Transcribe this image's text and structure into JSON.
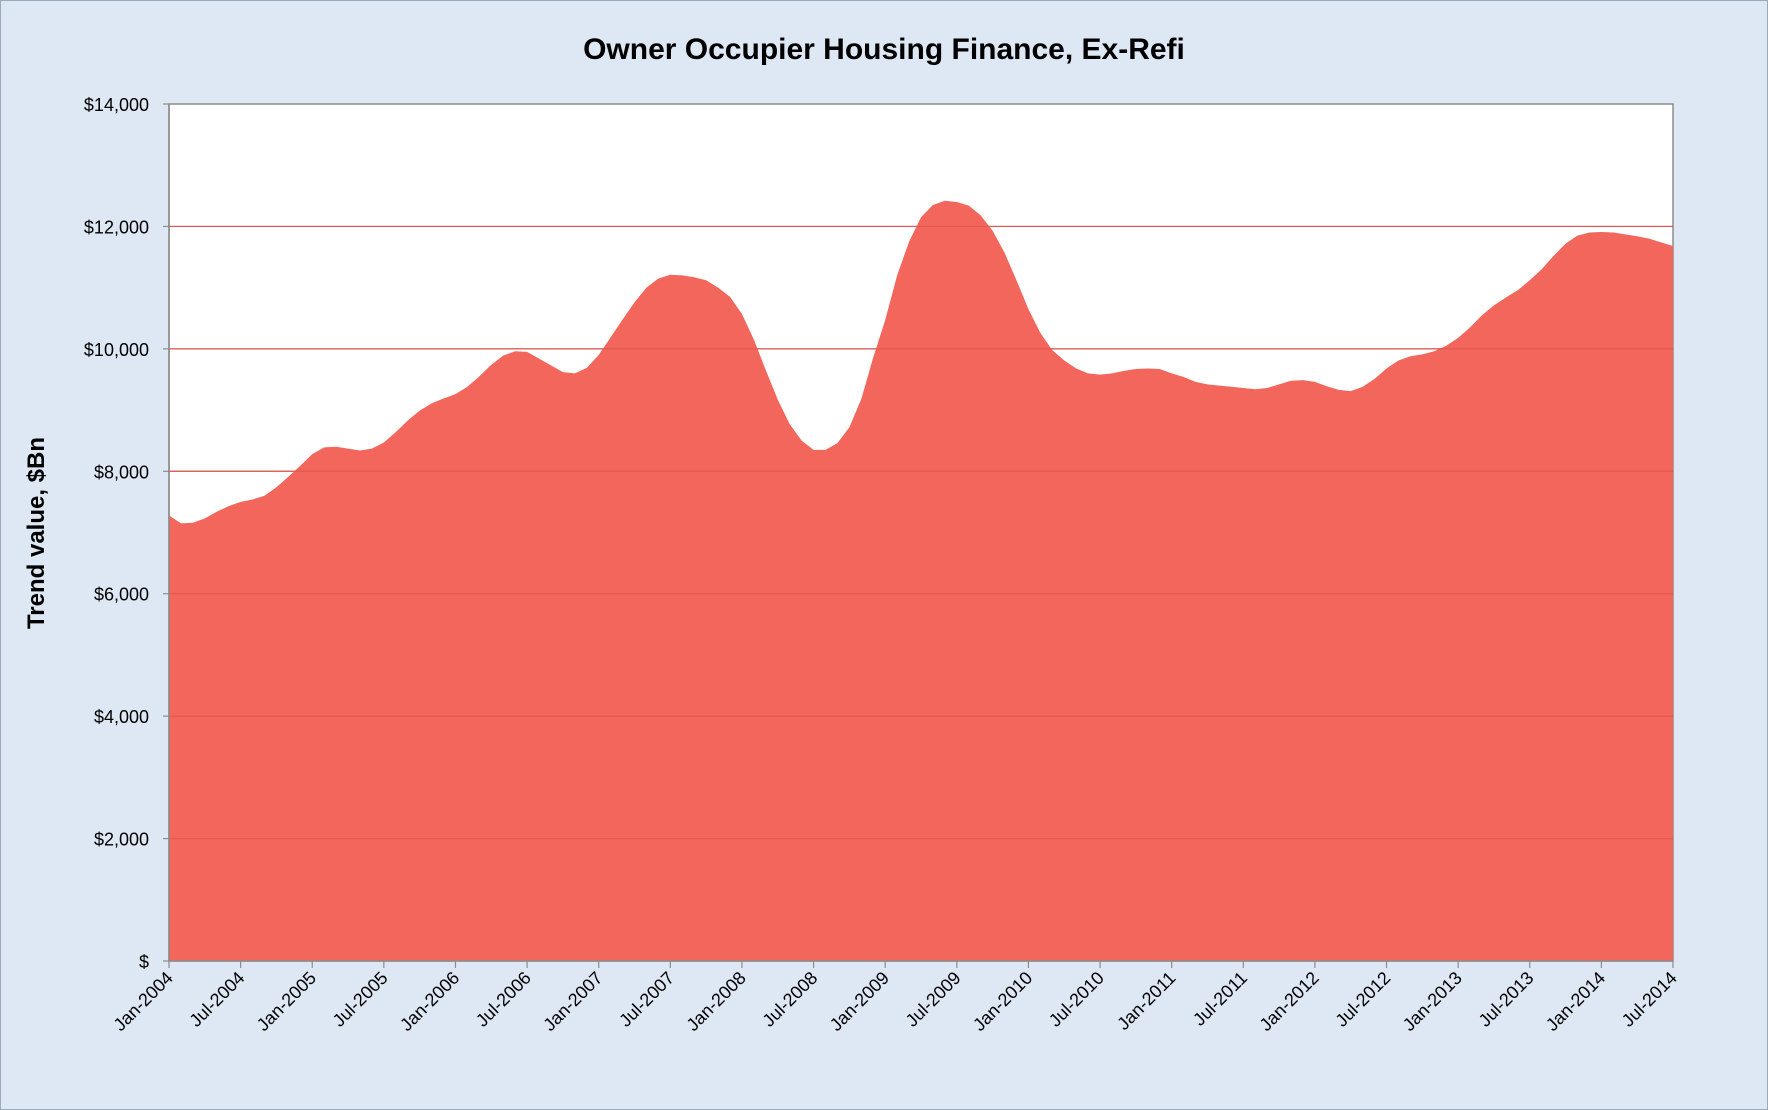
{
  "chart_data": {
    "type": "area",
    "title": "Owner Occupier Housing Finance, Ex-Refi",
    "xlabel": "",
    "ylabel": "Trend value, $Bn",
    "ylim": [
      0,
      14000
    ],
    "y_ticks": [
      0,
      2000,
      4000,
      6000,
      8000,
      10000,
      12000,
      14000
    ],
    "y_tick_labels": [
      "$",
      "$2,000",
      "$4,000",
      "$6,000",
      "$8,000",
      "$10,000",
      "$12,000",
      "$14,000"
    ],
    "x_tick_labels": [
      "Jan-2004",
      "Jul-2004",
      "Jan-2005",
      "Jul-2005",
      "Jan-2006",
      "Jul-2006",
      "Jan-2007",
      "Jul-2007",
      "Jan-2008",
      "Jul-2008",
      "Jan-2009",
      "Jul-2009",
      "Jan-2010",
      "Jul-2010",
      "Jan-2011",
      "Jul-2011",
      "Jan-2012",
      "Jul-2012",
      "Jan-2013",
      "Jul-2013",
      "Jan-2014",
      "Jul-2014"
    ],
    "grid": true,
    "fill_color": "#f2665c",
    "series": [
      {
        "values": [
          [
            0,
            7280
          ],
          [
            1,
            7150
          ],
          [
            2,
            7160
          ],
          [
            3,
            7230
          ],
          [
            4,
            7340
          ],
          [
            5,
            7430
          ],
          [
            6,
            7500
          ],
          [
            7,
            7540
          ],
          [
            8,
            7600
          ],
          [
            9,
            7740
          ],
          [
            10,
            7910
          ],
          [
            11,
            8090
          ],
          [
            12,
            8280
          ],
          [
            13,
            8390
          ],
          [
            14,
            8400
          ],
          [
            15,
            8370
          ],
          [
            16,
            8340
          ],
          [
            17,
            8370
          ],
          [
            18,
            8470
          ],
          [
            19,
            8640
          ],
          [
            20,
            8830
          ],
          [
            21,
            8990
          ],
          [
            22,
            9110
          ],
          [
            23,
            9190
          ],
          [
            24,
            9260
          ],
          [
            25,
            9380
          ],
          [
            26,
            9550
          ],
          [
            27,
            9740
          ],
          [
            28,
            9890
          ],
          [
            29,
            9960
          ],
          [
            30,
            9950
          ],
          [
            31,
            9840
          ],
          [
            32,
            9730
          ],
          [
            33,
            9620
          ],
          [
            34,
            9600
          ],
          [
            35,
            9690
          ],
          [
            36,
            9900
          ],
          [
            37,
            10190
          ],
          [
            38,
            10480
          ],
          [
            39,
            10760
          ],
          [
            40,
            11000
          ],
          [
            41,
            11150
          ],
          [
            42,
            11210
          ],
          [
            43,
            11200
          ],
          [
            44,
            11170
          ],
          [
            45,
            11120
          ],
          [
            46,
            11000
          ],
          [
            47,
            10850
          ],
          [
            48,
            10570
          ],
          [
            49,
            10150
          ],
          [
            50,
            9650
          ],
          [
            51,
            9170
          ],
          [
            52,
            8770
          ],
          [
            53,
            8500
          ],
          [
            54,
            8350
          ],
          [
            55,
            8350
          ],
          [
            56,
            8460
          ],
          [
            57,
            8720
          ],
          [
            58,
            9180
          ],
          [
            59,
            9860
          ],
          [
            60,
            10470
          ],
          [
            61,
            11200
          ],
          [
            62,
            11750
          ],
          [
            63,
            12150
          ],
          [
            64,
            12350
          ],
          [
            65,
            12420
          ],
          [
            66,
            12400
          ],
          [
            67,
            12340
          ],
          [
            68,
            12180
          ],
          [
            69,
            11930
          ],
          [
            70,
            11570
          ],
          [
            71,
            11120
          ],
          [
            72,
            10650
          ],
          [
            73,
            10260
          ],
          [
            74,
            9980
          ],
          [
            75,
            9810
          ],
          [
            76,
            9680
          ],
          [
            77,
            9600
          ],
          [
            78,
            9580
          ],
          [
            79,
            9600
          ],
          [
            80,
            9640
          ],
          [
            81,
            9670
          ],
          [
            82,
            9680
          ],
          [
            83,
            9670
          ],
          [
            84,
            9600
          ],
          [
            85,
            9540
          ],
          [
            86,
            9460
          ],
          [
            87,
            9420
          ],
          [
            88,
            9400
          ],
          [
            89,
            9380
          ],
          [
            90,
            9360
          ],
          [
            91,
            9340
          ],
          [
            92,
            9360
          ],
          [
            93,
            9420
          ],
          [
            94,
            9480
          ],
          [
            95,
            9490
          ],
          [
            96,
            9460
          ],
          [
            97,
            9390
          ],
          [
            98,
            9330
          ],
          [
            99,
            9310
          ],
          [
            100,
            9380
          ],
          [
            101,
            9510
          ],
          [
            102,
            9680
          ],
          [
            103,
            9810
          ],
          [
            104,
            9880
          ],
          [
            105,
            9910
          ],
          [
            106,
            9960
          ],
          [
            107,
            10050
          ],
          [
            108,
            10180
          ],
          [
            109,
            10350
          ],
          [
            110,
            10550
          ],
          [
            111,
            10710
          ],
          [
            112,
            10840
          ],
          [
            113,
            10960
          ],
          [
            114,
            11120
          ],
          [
            115,
            11300
          ],
          [
            116,
            11520
          ],
          [
            117,
            11720
          ],
          [
            118,
            11850
          ],
          [
            119,
            11900
          ],
          [
            120,
            11910
          ],
          [
            121,
            11900
          ],
          [
            122,
            11870
          ],
          [
            123,
            11840
          ],
          [
            124,
            11800
          ],
          [
            125,
            11740
          ],
          [
            126,
            11680
          ]
        ]
      }
    ]
  }
}
